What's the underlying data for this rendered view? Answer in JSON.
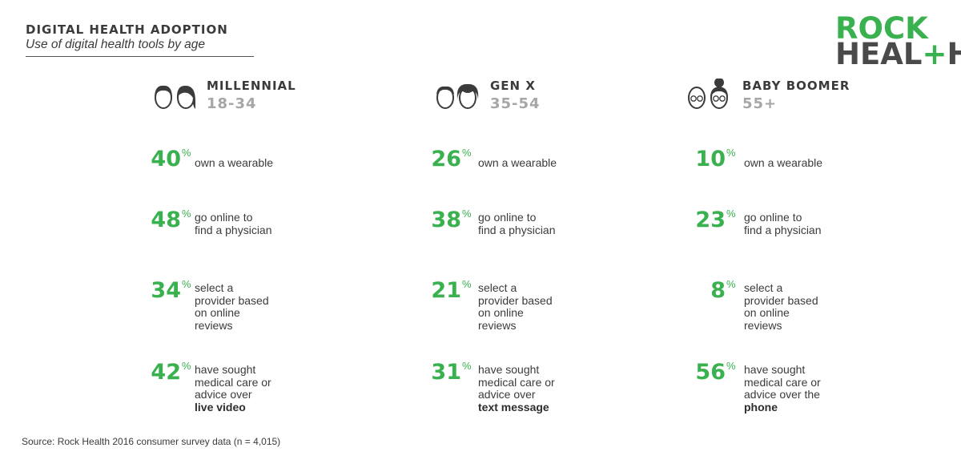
{
  "title": "DIGITAL HEALTH ADOPTION",
  "subtitle": "Use of digital health tools by age",
  "logo": {
    "line1": "ROCK",
    "line2_a": "HEAL",
    "line2_plus": "+",
    "line2_b": "H"
  },
  "source": "Source: Rock Health 2016 consumer survey data (n = 4,015)",
  "colors": {
    "accent": "#3ab14f",
    "text": "#3b3b3b",
    "muted": "#a6a6a6"
  },
  "generations": [
    {
      "name": "MILLENNIAL",
      "age": "18-34",
      "icon": "millennial-faces-icon"
    },
    {
      "name": "GEN X",
      "age": "35-54",
      "icon": "genx-faces-icon"
    },
    {
      "name": "BABY BOOMER",
      "age": "55+",
      "icon": "boomer-faces-icon"
    }
  ],
  "metrics": [
    {
      "lines": [
        "own a wearable"
      ],
      "bold": ""
    },
    {
      "lines": [
        "go online to",
        "find a physician"
      ],
      "bold": ""
    },
    {
      "lines": [
        "select a",
        "provider based",
        "on online",
        "reviews"
      ],
      "bold": ""
    }
  ],
  "last_metric": [
    {
      "lines": [
        "have sought",
        "medical care or",
        "advice over"
      ],
      "bold": "live video"
    },
    {
      "lines": [
        "have sought",
        "medical care or",
        "advice over"
      ],
      "bold": "text message"
    },
    {
      "lines": [
        "have sought",
        "medical care or",
        "advice over the"
      ],
      "bold": "phone"
    }
  ],
  "pct_symbol": "%",
  "chart_data": {
    "type": "table",
    "title": "DIGITAL HEALTH ADOPTION",
    "subtitle": "Use of digital health tools by age",
    "categories": [
      "MILLENNIAL 18-34",
      "GEN X 35-54",
      "BABY BOOMER 55+"
    ],
    "series": [
      {
        "name": "own a wearable",
        "values": [
          40,
          26,
          10
        ]
      },
      {
        "name": "go online to find a physician",
        "values": [
          48,
          38,
          23
        ]
      },
      {
        "name": "select a provider based on online reviews",
        "values": [
          34,
          21,
          8
        ]
      },
      {
        "name": "have sought medical care or advice over live video / text message / phone",
        "values": [
          42,
          31,
          56
        ]
      }
    ]
  }
}
